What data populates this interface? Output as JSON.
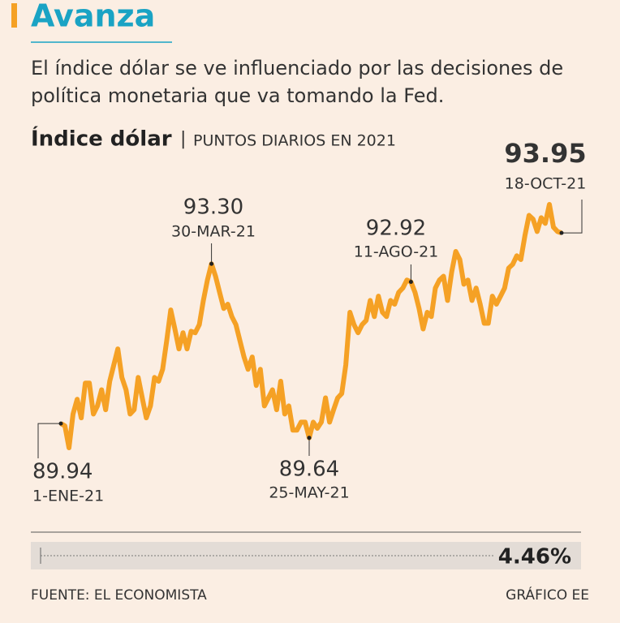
{
  "header": {
    "title": "Avanza",
    "subtitle_lines": [
      "El índice dólar se ve influenciado por las decisiones de",
      "política monetaria que va tomando la Fed."
    ]
  },
  "chart_data": {
    "type": "line",
    "title": "Índice dólar",
    "separator": "|",
    "subtitle": "PUNTOS DIARIOS EN 2021",
    "color": "#f5a125",
    "values": [
      89.94,
      89.89,
      89.43,
      90.14,
      90.45,
      90.06,
      90.79,
      90.79,
      90.14,
      90.31,
      90.65,
      90.23,
      90.83,
      91.17,
      91.51,
      90.91,
      90.65,
      90.14,
      90.23,
      90.91,
      90.48,
      90.06,
      90.31,
      90.91,
      90.83,
      91.08,
      91.68,
      92.33,
      91.93,
      91.51,
      91.85,
      91.51,
      91.88,
      91.85,
      92.02,
      92.53,
      92.96,
      93.3,
      93.04,
      92.7,
      92.36,
      92.45,
      92.19,
      92.02,
      91.68,
      91.34,
      91.08,
      91.34,
      90.74,
      91.08,
      90.31,
      90.48,
      90.65,
      90.23,
      90.83,
      90.14,
      90.31,
      89.8,
      89.8,
      89.97,
      89.97,
      89.64,
      89.97,
      89.84,
      89.97,
      90.48,
      89.97,
      90.23,
      90.48,
      90.57,
      91.17,
      92.28,
      92.02,
      91.85,
      92.02,
      92.11,
      92.53,
      92.19,
      92.62,
      92.28,
      92.19,
      92.53,
      92.45,
      92.7,
      92.79,
      92.96,
      92.92,
      92.7,
      92.36,
      91.93,
      92.28,
      92.19,
      92.79,
      92.96,
      93.04,
      92.53,
      93.13,
      93.56,
      93.39,
      92.87,
      92.96,
      92.53,
      92.79,
      92.45,
      92.05,
      92.05,
      92.62,
      92.45,
      92.62,
      92.79,
      93.21,
      93.29,
      93.47,
      93.39,
      93.9,
      94.32,
      94.24,
      93.98,
      94.27,
      94.15,
      94.55,
      94.07,
      93.98,
      93.95
    ],
    "annotations": [
      {
        "value": 89.94,
        "date": "1-ENE-21"
      },
      {
        "value": 93.3,
        "label": "93.30",
        "date": "30-MAR-21"
      },
      {
        "value": 89.64,
        "date": "25-MAY-21"
      },
      {
        "value": 92.92,
        "date": "11-AGO-21"
      },
      {
        "value": 93.95,
        "date": "18-OCT-21"
      }
    ],
    "change": {
      "value": 4.46,
      "label": "4.46%"
    }
  },
  "footer": {
    "source": "FUENTE: EL ECONOMISTA",
    "credit": "GRÁFICO EE"
  }
}
